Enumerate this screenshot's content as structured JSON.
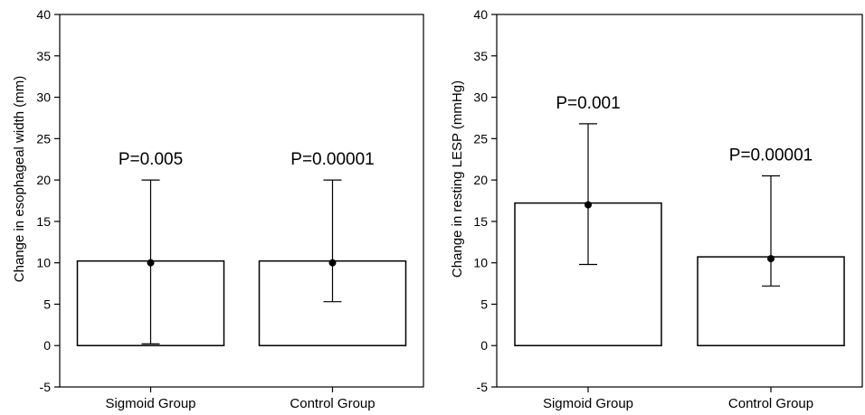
{
  "chart_data": [
    {
      "type": "bar",
      "title": "",
      "xlabel": "",
      "ylabel": "Change in esophageal width (mm)",
      "ylim": [
        -5,
        40
      ],
      "yticks": [
        -5,
        0,
        5,
        10,
        15,
        20,
        25,
        30,
        35,
        40
      ],
      "categories": [
        "Sigmoid Group",
        "Control Group"
      ],
      "values": [
        10,
        10
      ],
      "error_low": [
        0.2,
        5.3
      ],
      "error_high": [
        20,
        20
      ],
      "annotations": [
        "P=0.005",
        "P=0.00001"
      ],
      "grid": false,
      "legend": "none"
    },
    {
      "type": "bar",
      "title": "",
      "xlabel": "",
      "ylabel": "Change in resting LESP (mmHg)",
      "ylim": [
        -5,
        40
      ],
      "yticks": [
        -5,
        0,
        5,
        10,
        15,
        20,
        25,
        30,
        35,
        40
      ],
      "categories": [
        "Sigmoid Group",
        "Control Group"
      ],
      "values": [
        17,
        10.5
      ],
      "error_low": [
        9.8,
        7.2
      ],
      "error_high": [
        26.8,
        20.5
      ],
      "annotations": [
        "P=0.001",
        "P=0.00001"
      ],
      "grid": false,
      "legend": "none"
    }
  ]
}
